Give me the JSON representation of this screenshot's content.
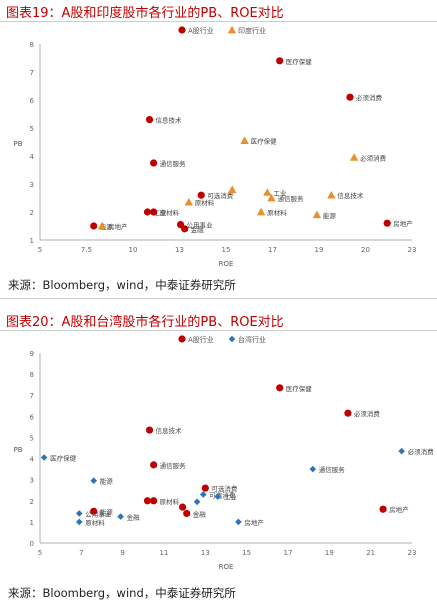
{
  "figures": [
    {
      "title": "图表19：A股和印度股市各行业的PB、ROE对比",
      "source": "来源：Bloomberg，wind，中泰证券研究所"
    },
    {
      "title": "图表20：A股和台湾股市各行业的PB、ROE对比",
      "source": "来源：Bloomberg，wind，中泰证券研究所"
    }
  ],
  "chart_data": [
    {
      "type": "scatter",
      "xlabel": "ROE",
      "ylabel": "PB",
      "xlim": [
        5,
        23
      ],
      "ylim": [
        1,
        8
      ],
      "x_ticks": [
        "5",
        "7.5",
        "10",
        "13",
        "15",
        "17",
        "19",
        "20",
        "23"
      ],
      "y_ticks": [
        "1",
        "2",
        "3",
        "4",
        "5",
        "6",
        "7",
        "8"
      ],
      "grid": false,
      "legend_position": "top-center",
      "series": [
        {
          "name": "A股行业",
          "color": "#c00000",
          "marker": "circle",
          "points": [
            {
              "x": 7.6,
              "y": 1.5,
              "label": "能源"
            },
            {
              "x": 10.2,
              "y": 2.0,
              "label": "工业"
            },
            {
              "x": 10.5,
              "y": 2.0,
              "label": "原材料"
            },
            {
              "x": 10.3,
              "y": 5.3,
              "label": "信息技术"
            },
            {
              "x": 10.5,
              "y": 3.75,
              "label": "通信服务"
            },
            {
              "x": 11.8,
              "y": 1.55,
              "label": "公用事业"
            },
            {
              "x": 12.0,
              "y": 1.4,
              "label": "金融"
            },
            {
              "x": 12.8,
              "y": 2.6,
              "label": "可选消费"
            },
            {
              "x": 16.6,
              "y": 7.4,
              "label": "医疗保健"
            },
            {
              "x": 20.0,
              "y": 6.1,
              "label": "必须消费"
            },
            {
              "x": 21.8,
              "y": 1.6,
              "label": "房地产"
            }
          ]
        },
        {
          "name": "印度行业",
          "color": "#e8912a",
          "marker": "triangle",
          "points": [
            {
              "x": 8.0,
              "y": 1.5,
              "label": "房地产"
            },
            {
              "x": 12.2,
              "y": 2.35,
              "label": "原材料"
            },
            {
              "x": 14.3,
              "y": 2.8,
              "label": ""
            },
            {
              "x": 14.9,
              "y": 4.55,
              "label": "医疗保健"
            },
            {
              "x": 15.7,
              "y": 2.0,
              "label": "原材料"
            },
            {
              "x": 16.0,
              "y": 2.7,
              "label": "工业"
            },
            {
              "x": 16.2,
              "y": 2.5,
              "label": "通信服务"
            },
            {
              "x": 18.4,
              "y": 1.9,
              "label": "能源"
            },
            {
              "x": 19.1,
              "y": 2.6,
              "label": "信息技术"
            },
            {
              "x": 20.2,
              "y": 3.95,
              "label": "必须消费"
            }
          ]
        }
      ]
    },
    {
      "type": "scatter",
      "xlabel": "ROE",
      "ylabel": "PB",
      "xlim": [
        5,
        23
      ],
      "ylim": [
        0,
        9
      ],
      "x_ticks": [
        "5",
        "7",
        "9",
        "11",
        "13",
        "15",
        "17",
        "19",
        "21",
        "23"
      ],
      "y_ticks": [
        "0",
        "1",
        "2",
        "3",
        "4",
        "5",
        "6",
        "7",
        "8",
        "9"
      ],
      "grid": false,
      "legend_position": "top-center",
      "series": [
        {
          "name": "A股行业",
          "color": "#c00000",
          "marker": "circle",
          "points": [
            {
              "x": 7.6,
              "y": 1.5,
              "label": "能源"
            },
            {
              "x": 10.2,
              "y": 2.0,
              "label": ""
            },
            {
              "x": 10.5,
              "y": 2.0,
              "label": "原材料"
            },
            {
              "x": 10.3,
              "y": 5.35,
              "label": "信息技术"
            },
            {
              "x": 10.5,
              "y": 3.7,
              "label": "通信服务"
            },
            {
              "x": 11.9,
              "y": 1.7,
              "label": ""
            },
            {
              "x": 12.1,
              "y": 1.4,
              "label": "金融"
            },
            {
              "x": 13.0,
              "y": 2.6,
              "label": "可选消费"
            },
            {
              "x": 16.6,
              "y": 7.35,
              "label": "医疗保健"
            },
            {
              "x": 19.9,
              "y": 6.15,
              "label": "必须消费"
            },
            {
              "x": 21.6,
              "y": 1.6,
              "label": "房地产"
            }
          ]
        },
        {
          "name": "台湾行业",
          "color": "#2e75b6",
          "marker": "diamond",
          "points": [
            {
              "x": 5.2,
              "y": 4.05,
              "label": "医疗保健"
            },
            {
              "x": 7.6,
              "y": 2.95,
              "label": "能源"
            },
            {
              "x": 6.9,
              "y": 1.4,
              "label": "公用事业"
            },
            {
              "x": 6.9,
              "y": 1.0,
              "label": "原材料"
            },
            {
              "x": 8.9,
              "y": 1.25,
              "label": "金融"
            },
            {
              "x": 12.6,
              "y": 1.95,
              "label": ""
            },
            {
              "x": 12.9,
              "y": 2.3,
              "label": "可选消费"
            },
            {
              "x": 13.6,
              "y": 2.2,
              "label": "工业"
            },
            {
              "x": 14.6,
              "y": 1.0,
              "label": "房地产"
            },
            {
              "x": 18.2,
              "y": 3.5,
              "label": "通信服务"
            },
            {
              "x": 22.5,
              "y": 4.35,
              "label": "必须消费"
            }
          ]
        }
      ]
    }
  ]
}
